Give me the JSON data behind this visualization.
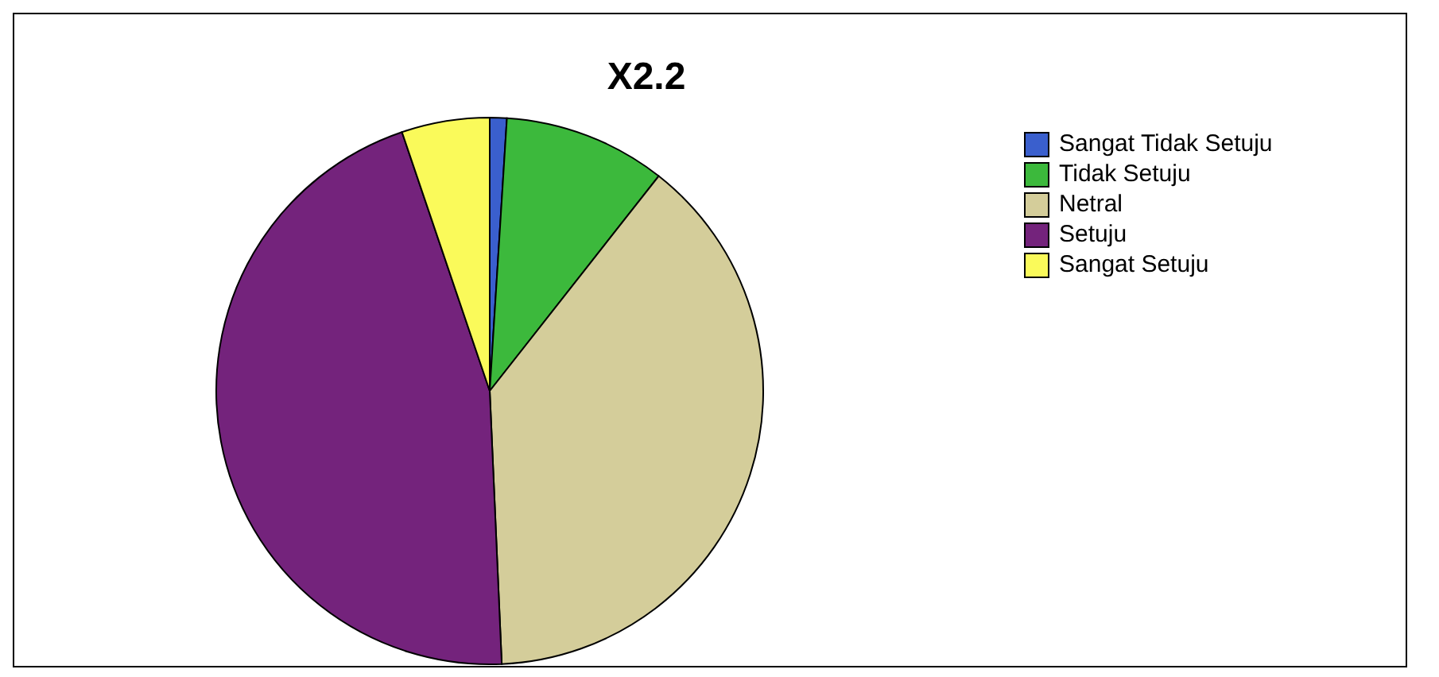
{
  "chart_data": {
    "type": "pie",
    "title": "X2.2",
    "categories": [
      "Sangat Tidak Setuju",
      "Tidak Setuju",
      "Netral",
      "Setuju",
      "Sangat Setuju"
    ],
    "values": [
      1,
      9.6,
      38.7,
      45.5,
      5.2
    ],
    "colors": [
      "#3a5fcd",
      "#3cb93c",
      "#d4cd9a",
      "#74237c",
      "#fafa5a"
    ],
    "legend": "top right"
  }
}
